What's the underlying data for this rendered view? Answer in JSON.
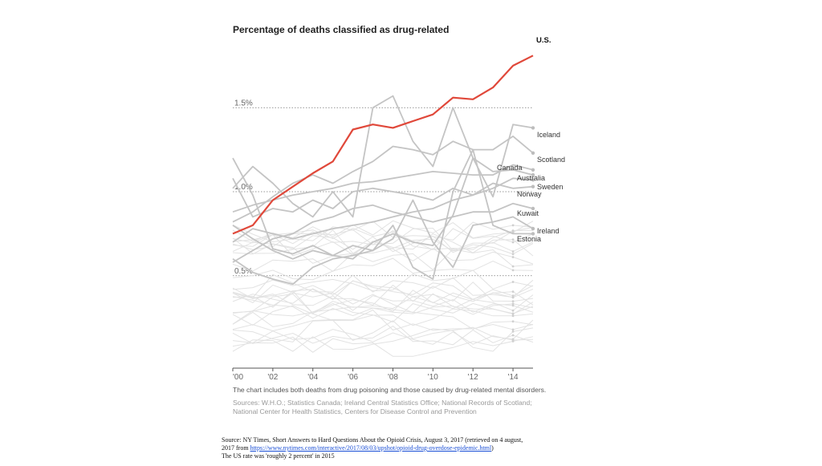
{
  "chart_data": {
    "type": "line",
    "title": "Percentage of deaths classified as drug-related",
    "x": [
      2000,
      2001,
      2002,
      2003,
      2004,
      2005,
      2006,
      2007,
      2008,
      2009,
      2010,
      2011,
      2012,
      2013,
      2014,
      2015
    ],
    "x_tick_labels": [
      "'00",
      "'02",
      "'04",
      "'06",
      "'08",
      "'10",
      "'12",
      "'14"
    ],
    "x_tick_values": [
      2000,
      2002,
      2004,
      2006,
      2008,
      2010,
      2012,
      2014
    ],
    "y_gridlines": [
      {
        "value": 0.5,
        "label": "0.5%"
      },
      {
        "value": 1.0,
        "label": "1.0%"
      },
      {
        "value": 1.5,
        "label": "1.5%"
      }
    ],
    "ylim": [
      -0.05,
      1.95
    ],
    "highlight_color": "#e0483a",
    "labeled_color": "#c4c4c4",
    "background_color": "#e2e2e2",
    "series": [
      {
        "name": "U.S.",
        "highlight": true,
        "values": [
          0.75,
          0.8,
          0.95,
          1.03,
          1.11,
          1.18,
          1.37,
          1.4,
          1.38,
          1.42,
          1.46,
          1.56,
          1.55,
          1.62,
          1.75,
          1.81
        ]
      },
      {
        "name": "Iceland",
        "values": [
          1.02,
          1.15,
          1.05,
          0.93,
          0.85,
          1.0,
          0.85,
          1.5,
          1.57,
          1.3,
          1.15,
          1.5,
          1.2,
          0.97,
          1.4,
          1.38
        ]
      },
      {
        "name": "Scotland",
        "values": [
          0.82,
          0.88,
          0.97,
          1.05,
          1.1,
          1.05,
          1.12,
          1.18,
          1.27,
          1.25,
          1.22,
          1.3,
          1.25,
          1.25,
          1.33,
          1.23
        ]
      },
      {
        "name": "Canada",
        "values": [
          1.2,
          0.98,
          0.66,
          0.63,
          0.68,
          0.62,
          0.6,
          0.7,
          0.75,
          0.7,
          0.68,
          0.86,
          1.2,
          1.12,
          1.13,
          1.1
        ]
      },
      {
        "name": "Australia",
        "values": [
          0.88,
          0.92,
          0.95,
          0.98,
          1.0,
          1.02,
          1.05,
          1.06,
          1.08,
          1.1,
          1.12,
          1.11,
          1.1,
          1.1,
          1.16,
          1.13
        ]
      },
      {
        "name": "Sweden",
        "values": [
          0.7,
          0.78,
          0.75,
          0.72,
          0.75,
          0.78,
          0.8,
          0.82,
          0.85,
          0.88,
          0.9,
          0.95,
          0.98,
          1.02,
          1.08,
          1.07
        ]
      },
      {
        "name": "Norway",
        "values": [
          1.08,
          0.85,
          0.9,
          0.88,
          0.95,
          0.9,
          1.0,
          1.02,
          1.0,
          0.98,
          0.95,
          1.02,
          0.98,
          1.05,
          1.02,
          1.03
        ]
      },
      {
        "name": "Kuwait",
        "values": [
          0.58,
          0.65,
          0.72,
          0.75,
          0.82,
          0.85,
          0.9,
          0.92,
          0.88,
          0.85,
          0.82,
          0.85,
          0.88,
          0.88,
          0.93,
          0.9
        ]
      },
      {
        "name": "Ireland",
        "values": [
          0.8,
          0.72,
          0.65,
          0.6,
          0.65,
          0.62,
          0.68,
          0.65,
          0.72,
          0.95,
          0.7,
          0.55,
          0.8,
          0.82,
          0.85,
          0.78
        ]
      },
      {
        "name": "Estonia",
        "values": [
          0.6,
          0.52,
          0.48,
          0.45,
          0.55,
          0.6,
          0.62,
          0.65,
          0.8,
          0.55,
          0.48,
          1.0,
          1.25,
          0.8,
          0.75,
          0.75
        ]
      }
    ],
    "background_series_count": 30,
    "note": "The chart includes both deaths from drug poisoning and those caused by drug-related mental disorders.",
    "sources_line1": "Sources: W.H.O.; Statistics Canada; Ireland Central Statistics Office; National Records of Scotland;",
    "sources_line2": "National Center for Health Statistics, Centers for Disease Control and Prevention"
  },
  "caption": {
    "line1": "Source: NY Times, Short Answers to Hard Questions About the Opioid Crisis, August 3, 2017 (retrieved on 4 august,",
    "line2_prefix": "2017 from ",
    "line2_link": "https://www.nytimes.com/interactive/2017/08/03/upshot/opioid-drug-overdose-epidemic.html",
    "line2_suffix": ")",
    "line3": "The US rate was 'roughly 2 percent' in 2015"
  }
}
